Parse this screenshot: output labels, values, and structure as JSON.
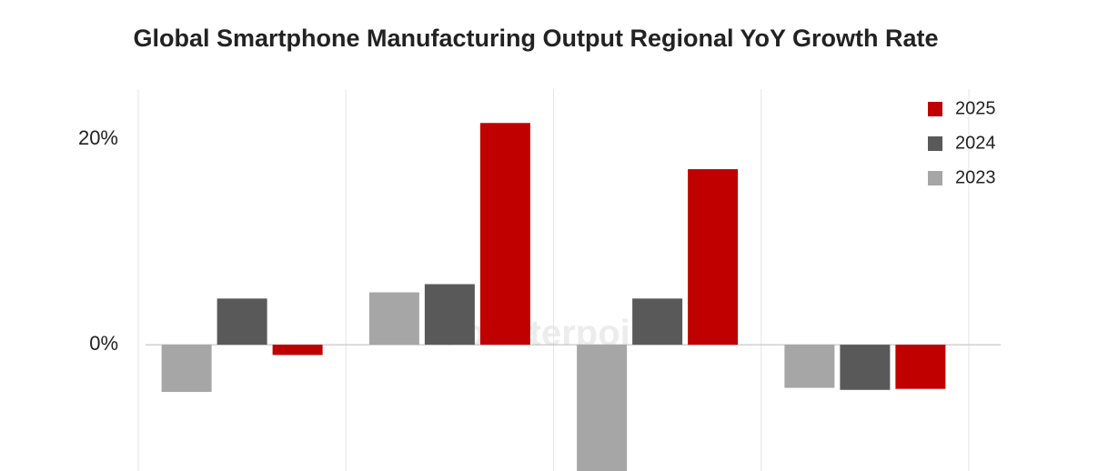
{
  "chart_data": {
    "type": "bar",
    "title": "Global Smartphone Manufacturing Output Regional YoY Growth Rate",
    "watermark": "Counterpoint",
    "categories": [
      null,
      null,
      null,
      null
    ],
    "series": [
      {
        "name": "2023",
        "color": "#a6a6a6",
        "values": [
          -4.6,
          5.1,
          -13,
          -4.2
        ]
      },
      {
        "name": "2024",
        "color": "#595959",
        "values": [
          4.5,
          5.9,
          4.5,
          -4.4
        ]
      },
      {
        "name": "2025",
        "color": "#c00000",
        "values": [
          -1.0,
          21.6,
          17.1,
          -4.3
        ]
      }
    ],
    "ylim": [
      -12.3,
      24.9
    ],
    "yticks": [
      {
        "value": 0,
        "label": "0%"
      },
      {
        "value": 20,
        "label": "20%"
      }
    ],
    "legend": "top-right",
    "grid": true
  }
}
